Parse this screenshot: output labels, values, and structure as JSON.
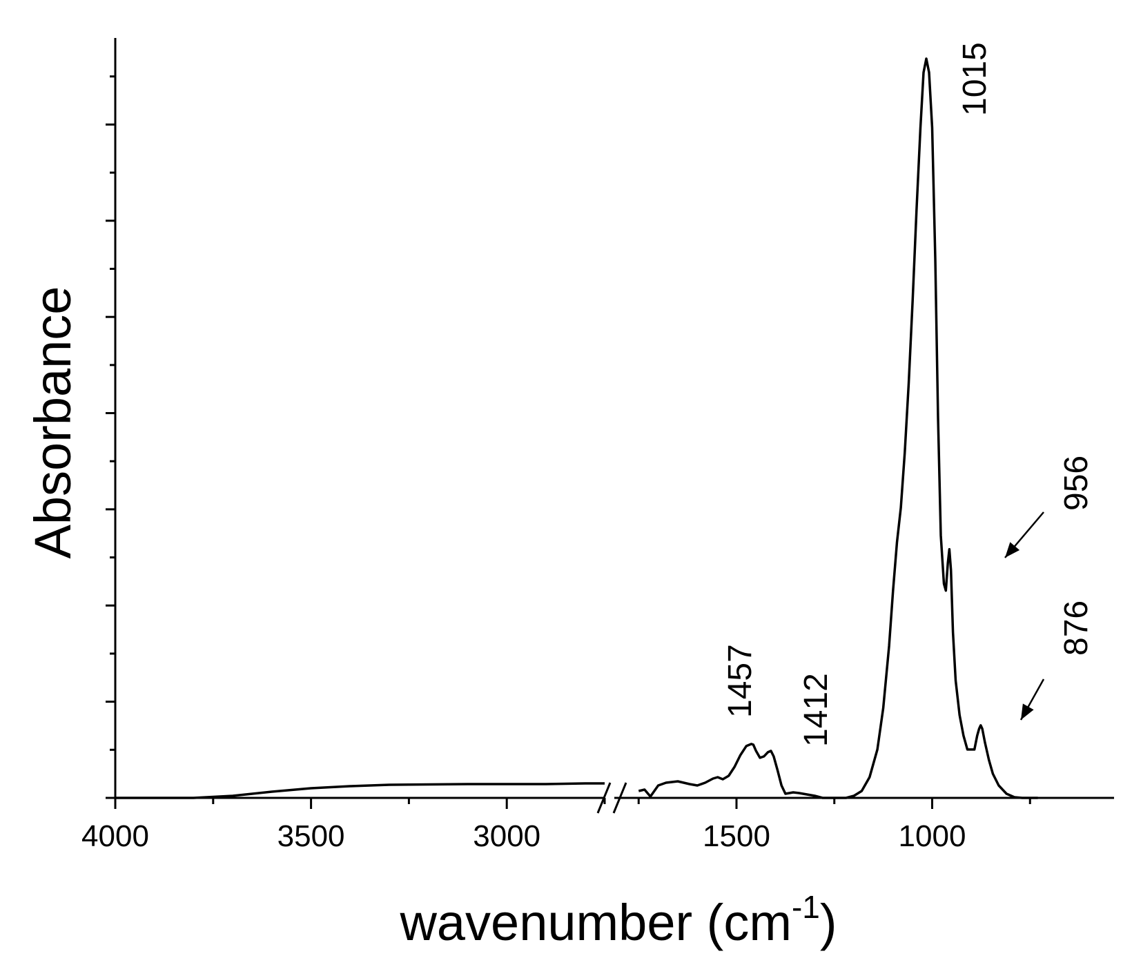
{
  "chart_data": {
    "type": "line",
    "xlabel": "wavenumber (cm",
    "xlabel_superscript": "-1",
    "xlabel_close": ")",
    "ylabel": "Absorbance",
    "x_reversed": true,
    "axis_break": [
      2750,
      1750
    ],
    "xlim_left_segment": [
      4000,
      2750
    ],
    "xlim_right_segment": [
      1750,
      730
    ],
    "ylim": [
      0,
      1.1
    ],
    "x_tick_labels": [
      "4000",
      "3500",
      "3000",
      "1500",
      "1000"
    ],
    "y_tick_labels_shown": false,
    "series": [
      {
        "segments": [
          {
            "x": [
              4000,
              3800,
              3700,
              3600,
              3500,
              3400,
              3300,
              3200,
              3100,
              3000,
              2900,
              2850,
              2800,
              2750
            ],
            "y": [
              0.0,
              0.0,
              0.003,
              0.009,
              0.014,
              0.017,
              0.019,
              0.0195,
              0.02,
              0.02,
              0.02,
              0.0205,
              0.021,
              0.021
            ]
          },
          {
            "x": [
              1750,
              1735,
              1720,
              1700,
              1680,
              1650,
              1620,
              1600,
              1580,
              1560,
              1548,
              1535,
              1520,
              1505,
              1490,
              1475,
              1462,
              1457,
              1450,
              1440,
              1430,
              1420,
              1412,
              1405,
              1395,
              1385,
              1375,
              1365,
              1355,
              1340,
              1320,
              1300,
              1280,
              1260,
              1240,
              1220,
              1200,
              1180,
              1160,
              1140,
              1125,
              1110,
              1100,
              1090,
              1080,
              1070,
              1060,
              1050,
              1040,
              1030,
              1022,
              1015,
              1008,
              1000,
              992,
              985,
              978,
              970,
              965,
              960,
              956,
              952,
              947,
              940,
              930,
              920,
              910,
              900,
              892,
              885,
              880,
              876,
              872,
              865,
              855,
              845,
              830,
              810,
              790,
              770,
              750,
              730
            ],
            "y": [
              0.01,
              0.012,
              0.002,
              0.018,
              0.022,
              0.024,
              0.02,
              0.018,
              0.022,
              0.028,
              0.03,
              0.027,
              0.032,
              0.045,
              0.062,
              0.075,
              0.078,
              0.077,
              0.068,
              0.058,
              0.06,
              0.066,
              0.068,
              0.06,
              0.04,
              0.018,
              0.006,
              0.007,
              0.008,
              0.007,
              0.005,
              0.003,
              0.0,
              0.0,
              0.0,
              0.0,
              0.003,
              0.01,
              0.03,
              0.07,
              0.13,
              0.22,
              0.3,
              0.37,
              0.42,
              0.5,
              0.6,
              0.72,
              0.85,
              0.97,
              1.05,
              1.07,
              1.05,
              0.97,
              0.78,
              0.55,
              0.38,
              0.31,
              0.3,
              0.34,
              0.36,
              0.33,
              0.24,
              0.17,
              0.12,
              0.09,
              0.07,
              0.07,
              0.07,
              0.09,
              0.1,
              0.105,
              0.1,
              0.08,
              0.055,
              0.035,
              0.018,
              0.006,
              0.001,
              0.0,
              0.0,
              0.0
            ]
          }
        ]
      }
    ],
    "annotations": [
      {
        "text": "1015",
        "x": 1015,
        "arrow": false
      },
      {
        "text": "956",
        "x": 956,
        "arrow": true
      },
      {
        "text": "876",
        "x": 876,
        "arrow": true
      },
      {
        "text": "1457",
        "x": 1457,
        "arrow": false
      },
      {
        "text": "1412",
        "x": 1412,
        "arrow": false
      }
    ]
  }
}
